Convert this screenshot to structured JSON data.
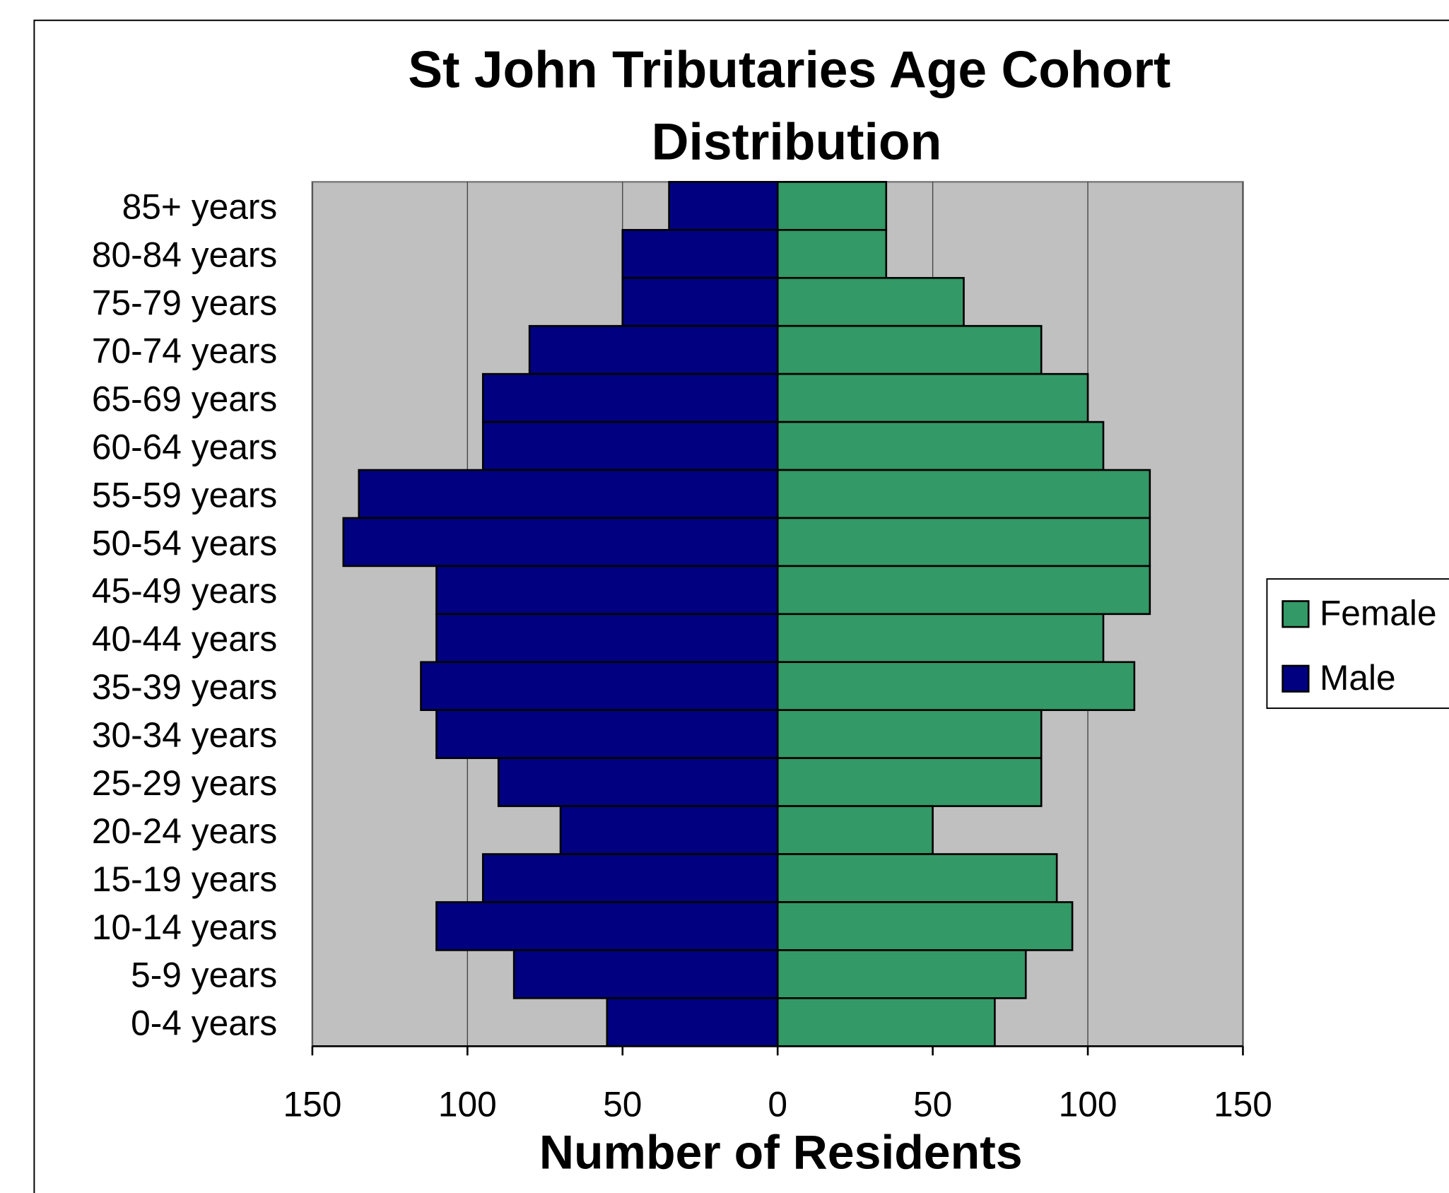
{
  "chart_data": {
    "type": "pyramid",
    "title": "St John Tributaries Age Cohort Distribution",
    "x_label": "Number of Residents",
    "categories": [
      "85+ years",
      "80-84 years",
      "75-79 years",
      "70-74 years",
      "65-69 years",
      "60-64 years",
      "55-59 years",
      "50-54 years",
      "45-49 years",
      "40-44 years",
      "35-39 years",
      "30-34 years",
      "25-29 years",
      "20-24 years",
      "15-19 years",
      "10-14 years",
      "5-9 years",
      "0-4 years"
    ],
    "series": [
      {
        "name": "Female",
        "color": "#339966",
        "values": [
          35,
          35,
          60,
          85,
          100,
          105,
          120,
          120,
          120,
          105,
          115,
          85,
          85,
          50,
          90,
          95,
          80,
          70
        ]
      },
      {
        "name": "Male",
        "color": "#000080",
        "values": [
          -35,
          -50,
          -50,
          -80,
          -95,
          -95,
          -135,
          -140,
          -110,
          -110,
          -115,
          -110,
          -90,
          -70,
          -95,
          -110,
          -85,
          -55
        ]
      }
    ],
    "xlim": [
      -150,
      150
    ],
    "xticks": [
      {
        "value": -150,
        "label": "150"
      },
      {
        "value": -100,
        "label": "100"
      },
      {
        "value": -50,
        "label": "50"
      },
      0,
      50,
      100,
      150
    ],
    "grid": true,
    "legend": "right"
  }
}
